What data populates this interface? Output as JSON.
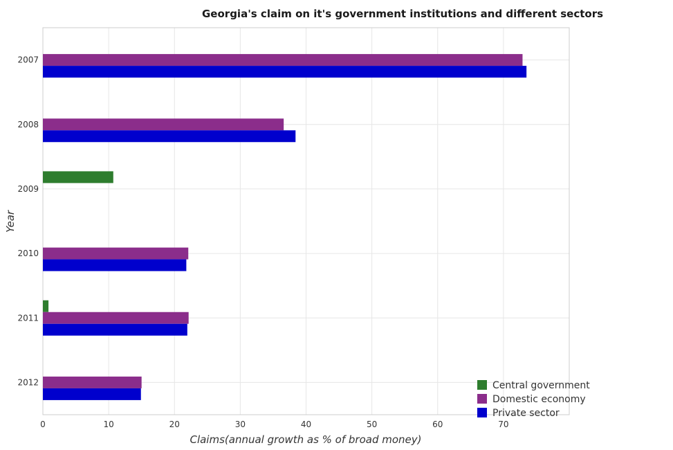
{
  "chart_data": {
    "type": "bar",
    "orientation": "horizontal",
    "title": "Georgia's claim on it's government institutions and different sectors",
    "xlabel": "Claims(annual growth as % of broad money)",
    "ylabel": "Year",
    "categories": [
      "2007",
      "2008",
      "2009",
      "2010",
      "2011",
      "2012"
    ],
    "xlim": [
      0,
      80
    ],
    "xticks": [
      0,
      10,
      20,
      30,
      40,
      50,
      60,
      70
    ],
    "grid": true,
    "legend_position": "bottom-right",
    "series": [
      {
        "name": "Central government",
        "color": "#2e7d2e",
        "values": [
          0,
          0,
          10.7,
          0,
          0.85,
          0
        ]
      },
      {
        "name": "Domestic economy",
        "color": "#8b2d8b",
        "values": [
          72.9,
          36.6,
          0,
          22.1,
          22.15,
          15.0
        ]
      },
      {
        "name": "Private sector",
        "color": "#0000cd",
        "values": [
          73.5,
          38.4,
          0,
          21.8,
          21.95,
          14.9
        ]
      }
    ]
  }
}
